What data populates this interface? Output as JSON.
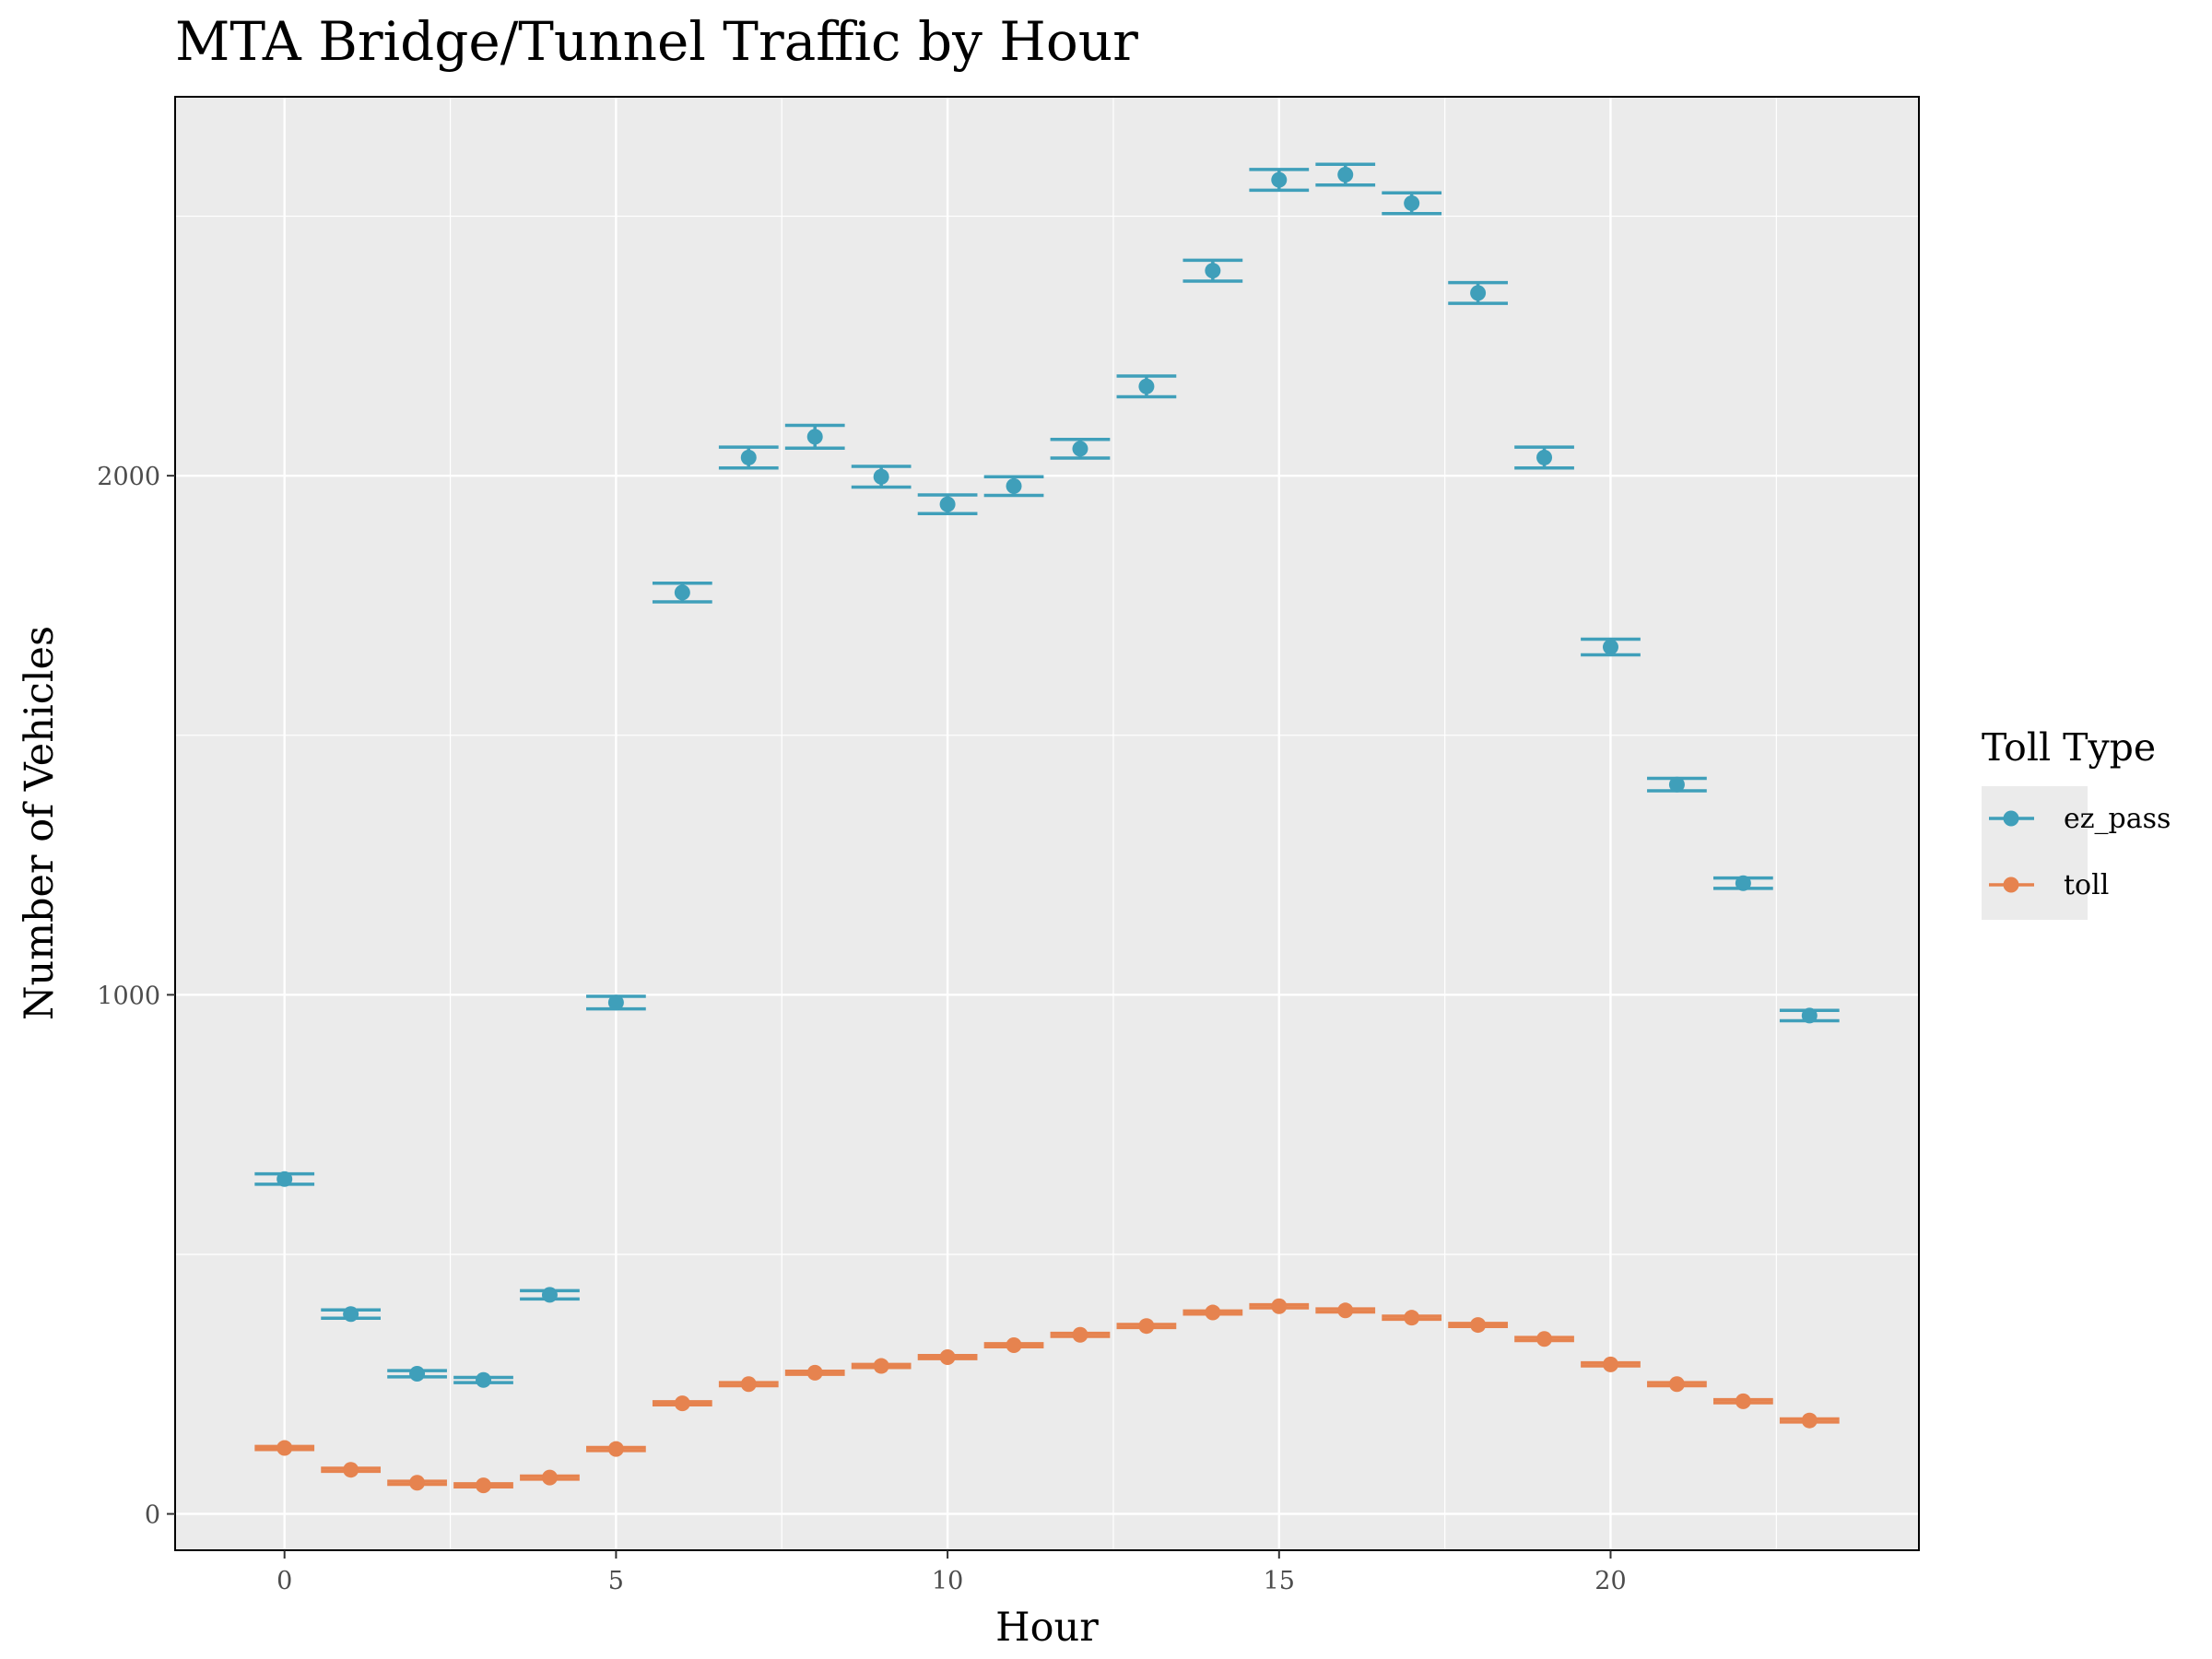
{
  "chart_data": {
    "type": "scatter",
    "title": "MTA Bridge/Tunnel Traffic by Hour",
    "xlabel": "Hour",
    "ylabel": "Number of Vehicles",
    "xlim": [
      -1.65,
      24.65
    ],
    "ylim": [
      -70,
      2730
    ],
    "x_ticks": [
      0,
      5,
      10,
      15,
      20
    ],
    "y_ticks": [
      0,
      1000,
      2000
    ],
    "grid": true,
    "legend": {
      "title": "Toll Type",
      "position": "right"
    },
    "x": [
      0,
      1,
      2,
      3,
      4,
      5,
      6,
      7,
      8,
      9,
      10,
      11,
      12,
      13,
      14,
      15,
      16,
      17,
      18,
      19,
      20,
      21,
      22,
      23
    ],
    "series": [
      {
        "name": "ez_pass",
        "color": "#3f9fba",
        "values": [
          645,
          385,
          270,
          258,
          422,
          985,
          1775,
          2035,
          2075,
          1998,
          1945,
          1980,
          2052,
          2172,
          2395,
          2570,
          2580,
          2525,
          2352,
          2035,
          1670,
          1405,
          1215,
          960
        ],
        "error_low": [
          635,
          377,
          264,
          253,
          414,
          973,
          1757,
          2015,
          2053,
          1978,
          1927,
          1962,
          2034,
          2152,
          2375,
          2550,
          2560,
          2505,
          2332,
          2015,
          1655,
          1393,
          1205,
          950
        ],
        "error_high": [
          655,
          393,
          276,
          263,
          430,
          997,
          1793,
          2055,
          2097,
          2018,
          1963,
          1998,
          2070,
          2192,
          2415,
          2590,
          2600,
          2545,
          2372,
          2055,
          1685,
          1417,
          1225,
          970
        ]
      },
      {
        "name": "toll",
        "color": "#e6834f",
        "values": [
          127,
          85,
          60,
          55,
          70,
          125,
          213,
          250,
          272,
          285,
          302,
          325,
          345,
          362,
          388,
          400,
          392,
          378,
          364,
          337,
          288,
          250,
          217,
          180
        ],
        "error_low": [
          124,
          82,
          57,
          52,
          67,
          122,
          210,
          247,
          269,
          282,
          299,
          322,
          342,
          359,
          385,
          397,
          389,
          375,
          361,
          334,
          285,
          247,
          214,
          177
        ],
        "error_high": [
          130,
          88,
          63,
          58,
          73,
          128,
          216,
          253,
          275,
          288,
          305,
          328,
          348,
          365,
          391,
          403,
          395,
          381,
          367,
          340,
          291,
          253,
          220,
          183
        ]
      }
    ]
  }
}
